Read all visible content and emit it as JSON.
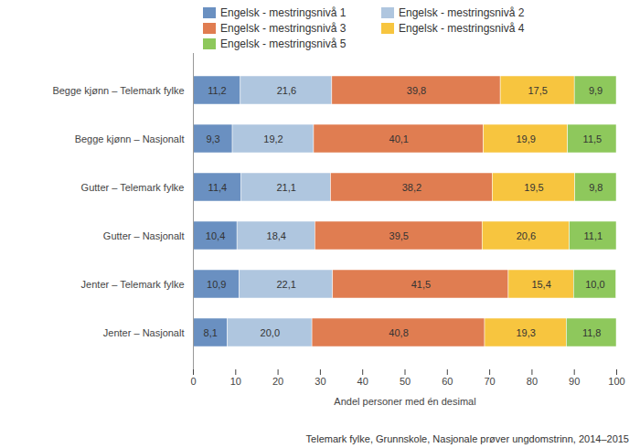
{
  "chart_data": {
    "type": "bar",
    "orientation": "horizontal",
    "stacked": true,
    "data_labels": true,
    "grid": false,
    "legend": "top",
    "caption": "Telemark fylke, Grunnskole, Nasjonale prøver ungdomstrinn, 2014–2015",
    "x_label": "Andel personer med én desimal",
    "xlim": [
      0,
      100
    ],
    "xticks": [
      0,
      10,
      20,
      30,
      40,
      50,
      60,
      70,
      80,
      90,
      100
    ],
    "categories": [
      "Begge kjønn – Telemark fylke",
      "Begge kjønn – Nasjonalt",
      "Gutter – Telemark fylke",
      "Gutter – Nasjonalt",
      "Jenter – Telemark fylke",
      "Jenter – Nasjonalt"
    ],
    "series": [
      {
        "name": "Engelsk - mestringsnivå 1",
        "color": "#6a90c1",
        "values": [
          11.2,
          9.3,
          11.4,
          10.4,
          10.9,
          8.1
        ],
        "value_labels": [
          "11,2",
          "9,3",
          "11,4",
          "10,4",
          "10,9",
          "8,1"
        ]
      },
      {
        "name": "Engelsk - mestringsnivå 2",
        "color": "#afc6df",
        "values": [
          21.6,
          19.2,
          21.1,
          18.4,
          22.1,
          20.0
        ],
        "value_labels": [
          "21,6",
          "19,2",
          "21,1",
          "18,4",
          "22,1",
          "20,0"
        ]
      },
      {
        "name": "Engelsk - mestringsnivå 3",
        "color": "#e07d51",
        "values": [
          39.8,
          40.1,
          38.2,
          39.5,
          41.5,
          40.8
        ],
        "value_labels": [
          "39,8",
          "40,1",
          "38,2",
          "39,5",
          "41,5",
          "40,8"
        ]
      },
      {
        "name": "Engelsk - mestringsnivå 4",
        "color": "#f7c53f",
        "values": [
          17.5,
          19.9,
          19.5,
          20.6,
          15.4,
          19.3
        ],
        "value_labels": [
          "17,5",
          "19,9",
          "19,5",
          "20,6",
          "15,4",
          "19,3"
        ]
      },
      {
        "name": "Engelsk - mestringsnivå 5",
        "color": "#8ec85c",
        "values": [
          9.9,
          11.5,
          9.8,
          11.1,
          10.0,
          11.8
        ],
        "value_labels": [
          "9,9",
          "11,5",
          "9,8",
          "11,1",
          "10,0",
          "11,8"
        ]
      }
    ]
  }
}
